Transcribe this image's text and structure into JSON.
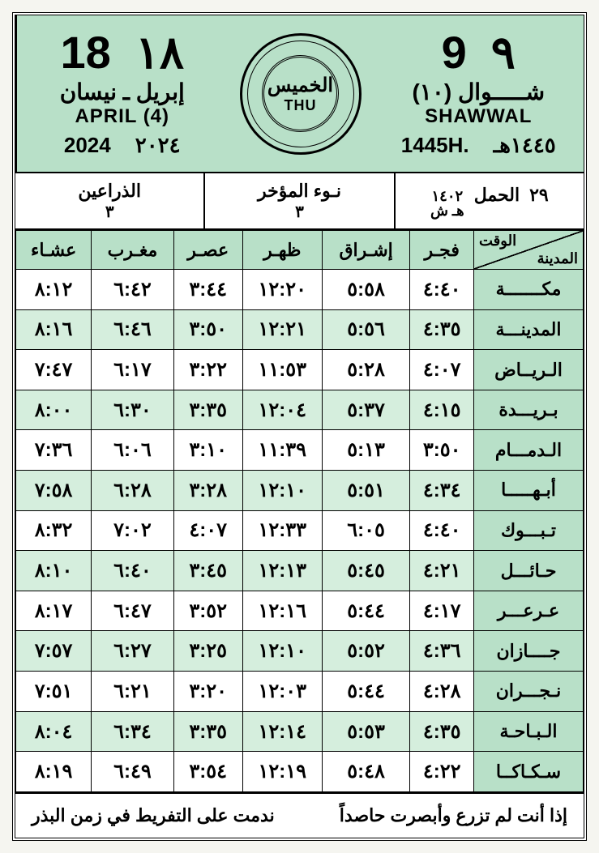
{
  "colors": {
    "header_bg": "#b8e0c8",
    "alt_row_bg": "#d5eedd",
    "border": "#000000",
    "page_bg": "#ffffff"
  },
  "gregorian": {
    "day_western": "18",
    "day_arabic": "١٨",
    "month_ar": "إبريل ـ نيسان",
    "month_en": "APRIL (4)",
    "year_western": "2024",
    "year_arabic": "٢٠٢٤"
  },
  "hijri": {
    "day_western": "9",
    "day_arabic": "٩",
    "month_ar": "شـــــوال (١٠)",
    "month_en": "SHAWWAL",
    "year_line_en": "1445H.",
    "year_line_ar": "١٤٤٥هـ"
  },
  "day": {
    "ar": "الخميس",
    "en": "THU"
  },
  "astro": {
    "c1_top_num": "٢٩",
    "c1_top_text": "الحمل",
    "c1_sub_num": "١٤٠٢",
    "c1_sub_text": "هـ ش",
    "c2_top": "نـوء المؤخر",
    "c2_sub": "٣",
    "c3_top": "الذراعين",
    "c3_sub": "٣"
  },
  "table": {
    "header_city_top": "الوقت",
    "header_city_bot": "المدينة",
    "cols": [
      "فجـر",
      "إشـراق",
      "ظهـر",
      "عصـر",
      "مغـرب",
      "عشـاء"
    ],
    "rows": [
      {
        "city": "مكـــــــة",
        "t": [
          "٤:٤٠",
          "٥:٥٨",
          "١٢:٢٠",
          "٣:٤٤",
          "٦:٤٢",
          "٨:١٢"
        ]
      },
      {
        "city": "المدينـــة",
        "t": [
          "٤:٣٥",
          "٥:٥٦",
          "١٢:٢١",
          "٣:٥٠",
          "٦:٤٦",
          "٨:١٦"
        ]
      },
      {
        "city": "الـريــاض",
        "t": [
          "٤:٠٧",
          "٥:٢٨",
          "١١:٥٣",
          "٣:٢٢",
          "٦:١٧",
          "٧:٤٧"
        ]
      },
      {
        "city": "بـريـــدة",
        "t": [
          "٤:١٥",
          "٥:٣٧",
          "١٢:٠٤",
          "٣:٣٥",
          "٦:٣٠",
          "٨:٠٠"
        ]
      },
      {
        "city": "الـدمـــام",
        "t": [
          "٣:٥٠",
          "٥:١٣",
          "١١:٣٩",
          "٣:١٠",
          "٦:٠٦",
          "٧:٣٦"
        ]
      },
      {
        "city": "أبـهـــــا",
        "t": [
          "٤:٣٤",
          "٥:٥١",
          "١٢:١٠",
          "٣:٢٨",
          "٦:٢٨",
          "٧:٥٨"
        ]
      },
      {
        "city": "تـبـــوك",
        "t": [
          "٤:٤٠",
          "٦:٠٥",
          "١٢:٣٣",
          "٤:٠٧",
          "٧:٠٢",
          "٨:٣٢"
        ]
      },
      {
        "city": "حـائـــل",
        "t": [
          "٤:٢١",
          "٥:٤٥",
          "١٢:١٣",
          "٣:٤٥",
          "٦:٤٠",
          "٨:١٠"
        ]
      },
      {
        "city": "عـرعـــر",
        "t": [
          "٤:١٧",
          "٥:٤٤",
          "١٢:١٦",
          "٣:٥٢",
          "٦:٤٧",
          "٨:١٧"
        ]
      },
      {
        "city": "جــــازان",
        "t": [
          "٤:٣٦",
          "٥:٥٢",
          "١٢:١٠",
          "٣:٢٥",
          "٦:٢٧",
          "٧:٥٧"
        ]
      },
      {
        "city": "نـجـــران",
        "t": [
          "٤:٢٨",
          "٥:٤٤",
          "١٢:٠٣",
          "٣:٢٠",
          "٦:٢١",
          "٧:٥١"
        ]
      },
      {
        "city": "الـبـاحـة",
        "t": [
          "٤:٣٥",
          "٥:٥٣",
          "١٢:١٤",
          "٣:٣٥",
          "٦:٣٤",
          "٨:٠٤"
        ]
      },
      {
        "city": "سـكـاكــا",
        "t": [
          "٤:٢٢",
          "٥:٤٨",
          "١٢:١٩",
          "٣:٥٤",
          "٦:٤٩",
          "٨:١٩"
        ]
      }
    ]
  },
  "footer": {
    "right": "إذا أنت لم تزرع وأبصرت حاصداً",
    "left": "ندمت على التفريط في زمن البذر"
  }
}
